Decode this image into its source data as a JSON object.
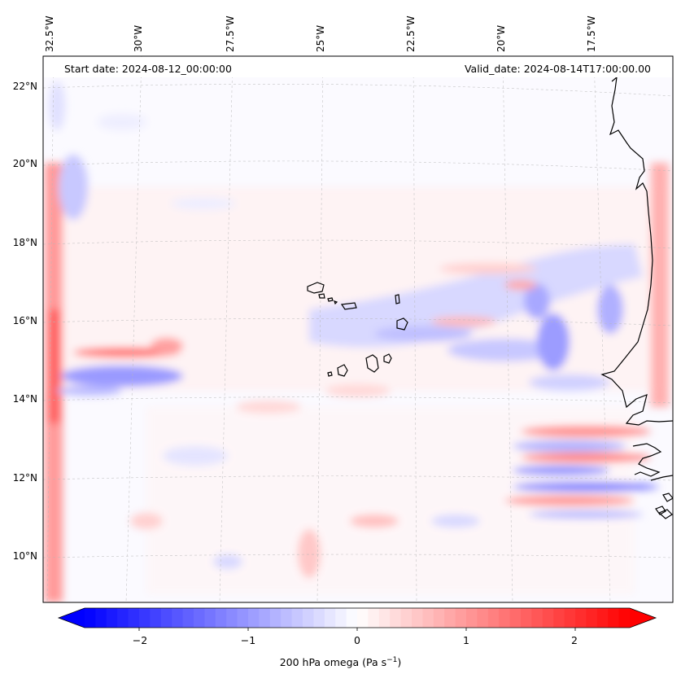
{
  "header": {
    "start_date": "Start date: 2024-08-12_00:00:00",
    "valid_date": "Valid_date: 2024-08-14T17:00:00.00"
  },
  "map": {
    "longitude_labels": [
      "32.5°W",
      "30°W",
      "27.5°W",
      "25°W",
      "22.5°W",
      "20°W",
      "17.5°W"
    ],
    "latitude_labels": [
      "22°N",
      "20°N",
      "18°N",
      "16°N",
      "14°N",
      "12°N",
      "10°N"
    ]
  },
  "colorbar": {
    "ticks": [
      "−2",
      "−1",
      "0",
      "1",
      "2"
    ],
    "tick_values": [
      -2,
      -1,
      0,
      1,
      2
    ],
    "range": [
      -2.5,
      2.5
    ],
    "label_main": "200 hPa omega (Pa s",
    "label_sup": "−1",
    "label_end": ")",
    "colors": {
      "negative": "#0000ff",
      "zero": "#ffffff",
      "positive": "#ff0000"
    }
  }
}
